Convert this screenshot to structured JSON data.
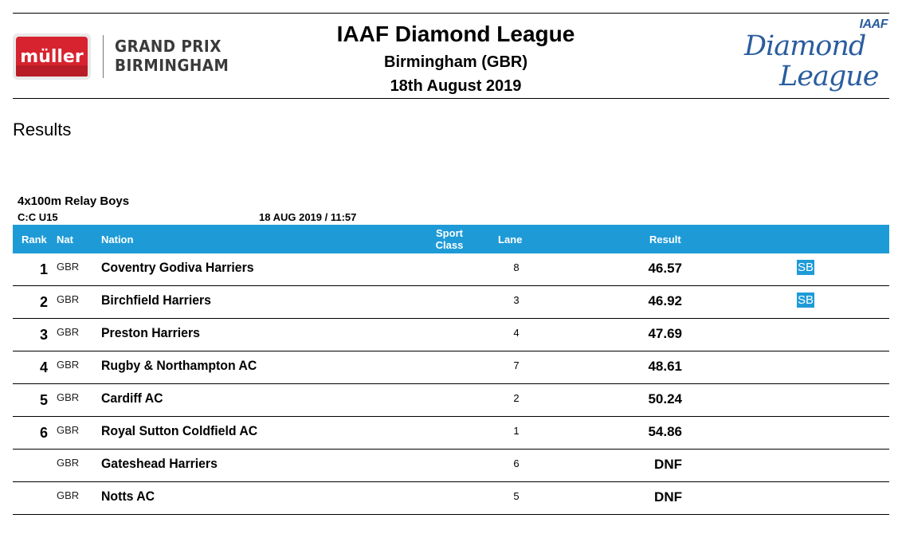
{
  "header": {
    "sponsor_logo_text": "müller",
    "sponsor_line1": "GRAND PRIX",
    "sponsor_line2": "BIRMINGHAM",
    "title": "IAAF Diamond League",
    "location": "Birmingham (GBR)",
    "date": "18th August 2019",
    "dl_logo_iaaf": "IAAF",
    "dl_logo_diamond": "Diamond",
    "dl_logo_league": "League"
  },
  "page_heading": "Results",
  "event": {
    "name": "4x100m Relay Boys",
    "category": "C:C U15",
    "datetime": "18 AUG 2019 / 11:57"
  },
  "table": {
    "headers": {
      "rank": "Rank",
      "nat": "Nat",
      "nation": "Nation",
      "sport_line1": "Sport",
      "sport_line2": "Class",
      "lane": "Lane",
      "result": "Result"
    },
    "rows": [
      {
        "rank": "1",
        "nat": "GBR",
        "nation": "Coventry Godiva Harriers",
        "lane": "8",
        "result": "46.57",
        "note": "SB"
      },
      {
        "rank": "2",
        "nat": "GBR",
        "nation": "Birchfield Harriers",
        "lane": "3",
        "result": "46.92",
        "note": "SB"
      },
      {
        "rank": "3",
        "nat": "GBR",
        "nation": "Preston Harriers",
        "lane": "4",
        "result": "47.69",
        "note": ""
      },
      {
        "rank": "4",
        "nat": "GBR",
        "nation": "Rugby & Northampton AC",
        "lane": "7",
        "result": "48.61",
        "note": ""
      },
      {
        "rank": "5",
        "nat": "GBR",
        "nation": "Cardiff AC",
        "lane": "2",
        "result": "50.24",
        "note": ""
      },
      {
        "rank": "6",
        "nat": "GBR",
        "nation": "Royal Sutton Coldfield AC",
        "lane": "1",
        "result": "54.86",
        "note": ""
      },
      {
        "rank": "",
        "nat": "GBR",
        "nation": "Gateshead Harriers",
        "lane": "6",
        "result": "DNF",
        "note": ""
      },
      {
        "rank": "",
        "nat": "GBR",
        "nation": "Notts AC",
        "lane": "5",
        "result": "DNF",
        "note": ""
      }
    ]
  },
  "colors": {
    "header_bar": "#1e9bd7",
    "sponsor_red": "#d7232f",
    "dl_blue": "#2a5d9f"
  }
}
